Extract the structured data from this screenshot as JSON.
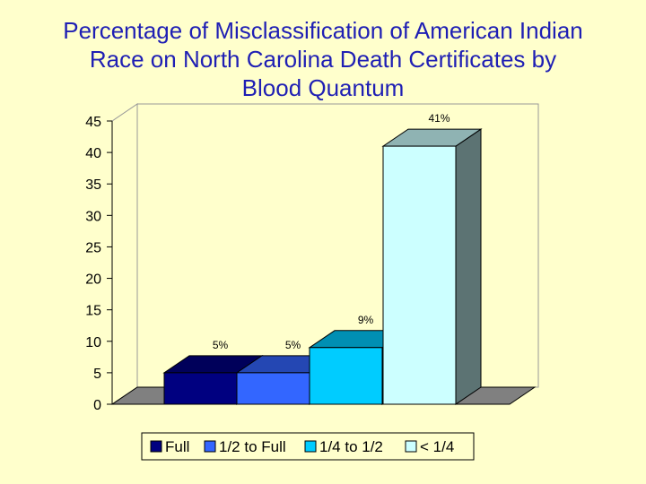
{
  "chart_data": {
    "type": "bar",
    "title_lines": [
      "Percentage of Misclassification of American Indian",
      "Race on North Carolina Death Certificates by",
      "Blood Quantum"
    ],
    "categories": [
      "Full",
      "1/2 to Full",
      "1/4 to 1/2",
      "< 1/4"
    ],
    "values": [
      5,
      5,
      9,
      41
    ],
    "data_labels": [
      "5%",
      "5%",
      "9%",
      "41%"
    ],
    "xlabel": "",
    "ylabel": "",
    "ylim": [
      0,
      45
    ],
    "yticks": [
      "0",
      "5",
      "10",
      "15",
      "20",
      "25",
      "30",
      "35",
      "40",
      "45"
    ],
    "grid": false,
    "legend_position": "bottom",
    "style": "3d-bar",
    "colors": {
      "Full": "#000080",
      "1/2 to Full": "#3366FF",
      "1/4 to 1/2": "#00CCFF",
      "< 1/4": "#CCFFFF",
      "title": "#1F1FB4",
      "background": "#FFFFCC"
    }
  }
}
